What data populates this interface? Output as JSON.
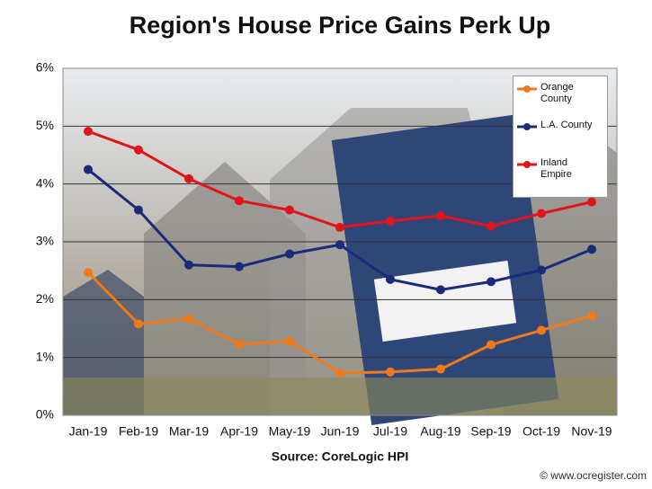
{
  "chart_data": {
    "type": "line",
    "title": "Region's House Price Gains Perk Up",
    "source": "Source: CoreLogic HPI",
    "credit": "© www.ocregister.com",
    "categories": [
      "Jan-19",
      "Feb-19",
      "Mar-19",
      "Apr-19",
      "May-19",
      "Jun-19",
      "Jul-19",
      "Aug-19",
      "Sep-19",
      "Oct-19",
      "Nov-19"
    ],
    "series": [
      {
        "name": "Orange County",
        "color": "#f07a1a",
        "values": [
          2.47,
          1.58,
          1.67,
          1.23,
          1.28,
          0.73,
          0.75,
          0.8,
          1.22,
          1.47,
          1.72
        ]
      },
      {
        "name": "L.A. County",
        "color": "#1c2a7a",
        "values": [
          4.25,
          3.55,
          2.6,
          2.57,
          2.79,
          2.95,
          2.35,
          2.17,
          2.31,
          2.51,
          2.87
        ]
      },
      {
        "name": "Inland Empire",
        "color": "#e0141c",
        "values": [
          4.91,
          4.59,
          4.09,
          3.71,
          3.55,
          3.25,
          3.36,
          3.45,
          3.27,
          3.49,
          3.69
        ]
      }
    ],
    "ylim": [
      0,
      6
    ],
    "yticks": [
      {
        "value": 0,
        "label": "0%"
      },
      {
        "value": 1,
        "label": "1%"
      },
      {
        "value": 2,
        "label": "2%"
      },
      {
        "value": 3,
        "label": "3%"
      },
      {
        "value": 4,
        "label": "4%"
      },
      {
        "value": 5,
        "label": "5%"
      },
      {
        "value": 6,
        "label": "6%"
      }
    ],
    "grid": true,
    "legend": "top-right"
  }
}
